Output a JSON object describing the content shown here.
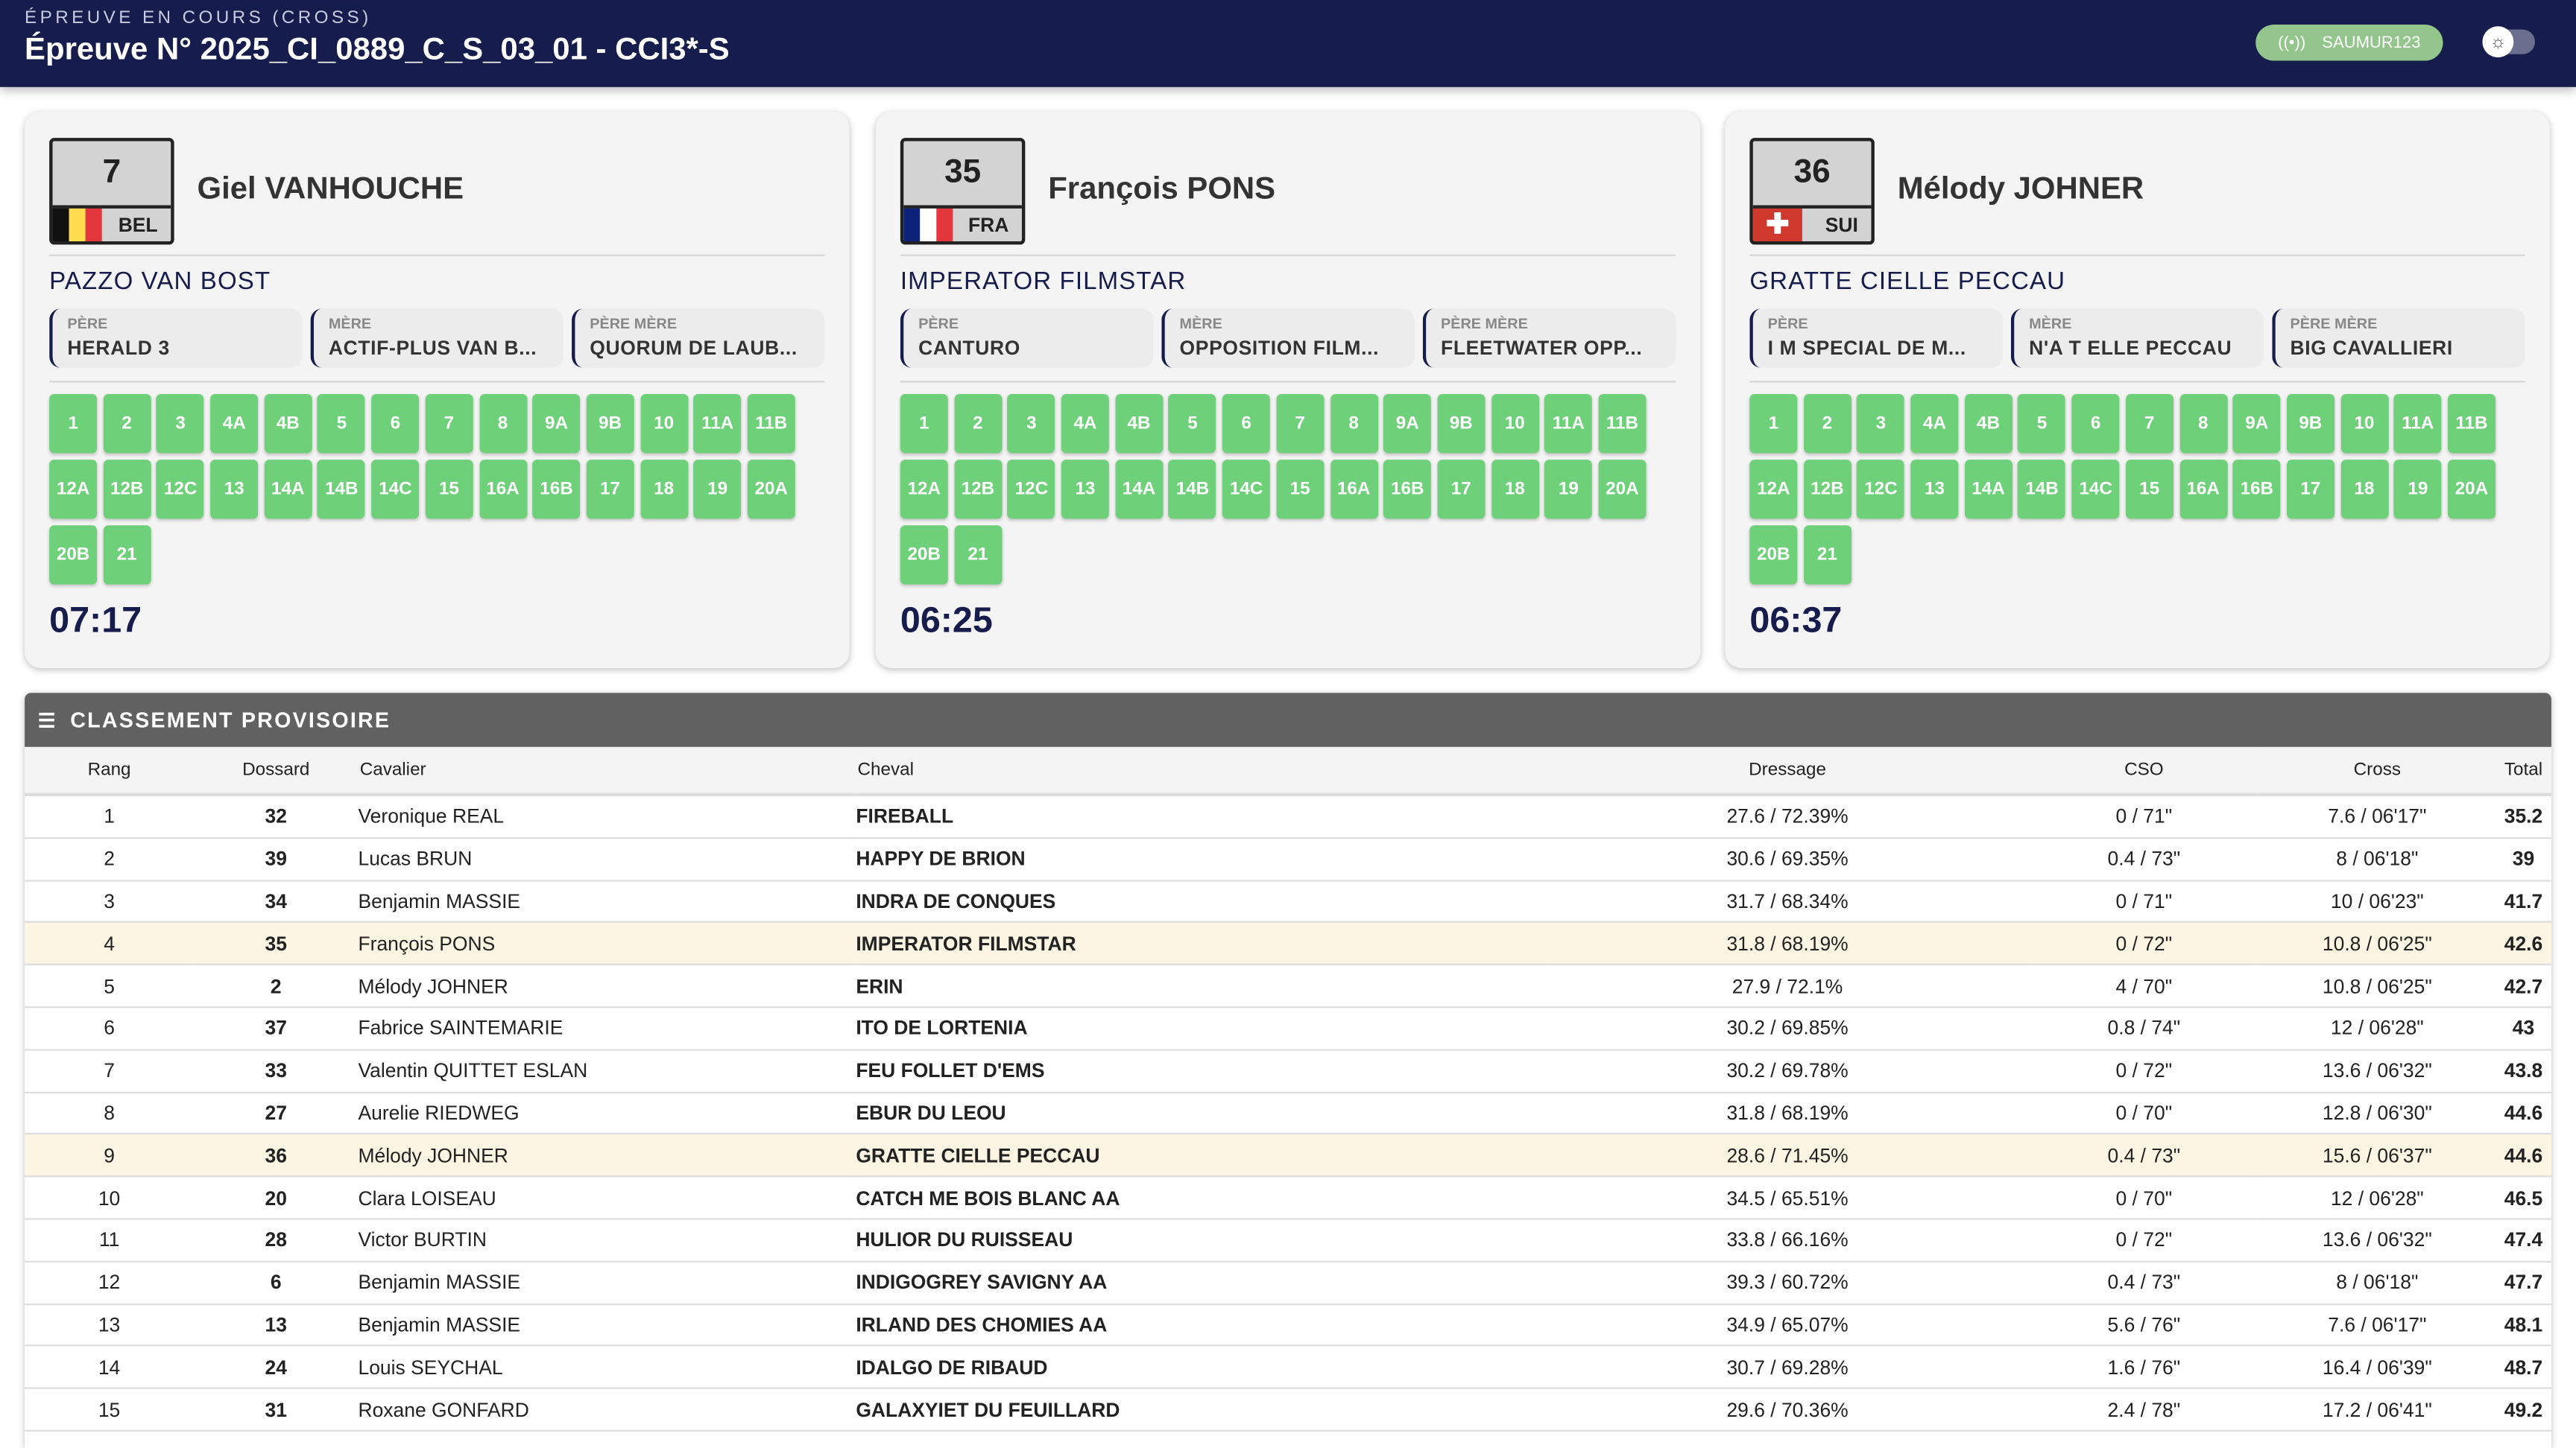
{
  "header": {
    "subtitle": "ÉPREUVE EN COURS (CROSS)",
    "title": "Épreuve N° 2025_CI_0889_C_S_03_01 - CCI3*-S",
    "connection_label": "SAUMUR123",
    "connection_icon": "broadcast-icon",
    "theme_icon": "sun-icon"
  },
  "colors": {
    "navy": "#161d4d",
    "obstacle_ok": "#6fd07a",
    "connection": "#93c58c",
    "highlight_row": "#fdf5e3"
  },
  "cards": [
    {
      "bib": "7",
      "country": "BEL",
      "flag": [
        "#111111",
        "#fddc4e",
        "#e3363d"
      ],
      "rider": "Giel VANHOUCHE",
      "horse": "PAZZO VAN BOST",
      "pedigree": [
        {
          "label": "PÈRE",
          "value": "HERALD 3"
        },
        {
          "label": "MÈRE",
          "value": "ACTIF-PLUS VAN B..."
        },
        {
          "label": "PÈRE MÈRE",
          "value": "QUORUM DE LAUB..."
        }
      ],
      "time": "07:17"
    },
    {
      "bib": "35",
      "country": "FRA",
      "flag": [
        "#0c2179",
        "#ffffff",
        "#e3363d"
      ],
      "rider": "François PONS",
      "horse": "IMPERATOR FILMSTAR",
      "pedigree": [
        {
          "label": "PÈRE",
          "value": "CANTURO"
        },
        {
          "label": "MÈRE",
          "value": "OPPOSITION FILM..."
        },
        {
          "label": "PÈRE MÈRE",
          "value": "FLEETWATER OPP..."
        }
      ],
      "time": "06:25"
    },
    {
      "bib": "36",
      "country": "SUI",
      "flag": [
        "swiss"
      ],
      "rider": "Mélody JOHNER",
      "horse": "GRATTE CIELLE PECCAU",
      "pedigree": [
        {
          "label": "PÈRE",
          "value": "I M SPECIAL DE M..."
        },
        {
          "label": "MÈRE",
          "value": "N'A T ELLE PECCAU"
        },
        {
          "label": "PÈRE MÈRE",
          "value": "BIG CAVALLIERI"
        }
      ],
      "time": "06:37"
    }
  ],
  "obstacles": [
    "1",
    "2",
    "3",
    "4A",
    "4B",
    "5",
    "6",
    "7",
    "8",
    "9A",
    "9B",
    "10",
    "11A",
    "11B",
    "12A",
    "12B",
    "12C",
    "13",
    "14A",
    "14B",
    "14C",
    "15",
    "16A",
    "16B",
    "17",
    "18",
    "19",
    "20A",
    "20B",
    "21"
  ],
  "ranking": {
    "title": "CLASSEMENT PROVISOIRE",
    "columns": [
      "Rang",
      "Dossard",
      "Cavalier",
      "Cheval",
      "Dressage",
      "CSO",
      "Cross",
      "Total"
    ],
    "rows": [
      [
        "1",
        "32",
        "Veronique REAL",
        "FIREBALL",
        "27.6 / 72.39%",
        "0 / 71\"",
        "7.6 / 06'17\"",
        "35.2"
      ],
      [
        "2",
        "39",
        "Lucas BRUN",
        "HAPPY DE BRION",
        "30.6 / 69.35%",
        "0.4 / 73\"",
        "8 / 06'18\"",
        "39"
      ],
      [
        "3",
        "34",
        "Benjamin MASSIE",
        "INDRA DE CONQUES",
        "31.7 / 68.34%",
        "0 / 71\"",
        "10 / 06'23\"",
        "41.7"
      ],
      [
        "4",
        "35",
        "François PONS",
        "IMPERATOR FILMSTAR",
        "31.8 / 68.19%",
        "0 / 72\"",
        "10.8 / 06'25\"",
        "42.6"
      ],
      [
        "5",
        "2",
        "Mélody JOHNER",
        "ERIN",
        "27.9 / 72.1%",
        "4 / 70\"",
        "10.8 / 06'25\"",
        "42.7"
      ],
      [
        "6",
        "37",
        "Fabrice SAINTEMARIE",
        "ITO DE LORTENIA",
        "30.2 / 69.85%",
        "0.8 / 74\"",
        "12 / 06'28\"",
        "43"
      ],
      [
        "7",
        "33",
        "Valentin QUITTET ESLAN",
        "FEU FOLLET D'EMS",
        "30.2 / 69.78%",
        "0 / 72\"",
        "13.6 / 06'32\"",
        "43.8"
      ],
      [
        "8",
        "27",
        "Aurelie RIEDWEG",
        "EBUR DU LEOU",
        "31.8 / 68.19%",
        "0 / 70\"",
        "12.8 / 06'30\"",
        "44.6"
      ],
      [
        "9",
        "36",
        "Mélody JOHNER",
        "GRATTE CIELLE PECCAU",
        "28.6 / 71.45%",
        "0.4 / 73\"",
        "15.6 / 06'37\"",
        "44.6"
      ],
      [
        "10",
        "20",
        "Clara LOISEAU",
        "CATCH ME BOIS BLANC AA",
        "34.5 / 65.51%",
        "0 / 70\"",
        "12 / 06'28\"",
        "46.5"
      ],
      [
        "11",
        "28",
        "Victor BURTIN",
        "HULIOR DU RUISSEAU",
        "33.8 / 66.16%",
        "0 / 72\"",
        "13.6 / 06'32\"",
        "47.4"
      ],
      [
        "12",
        "6",
        "Benjamin MASSIE",
        "INDIGOGREY SAVIGNY AA",
        "39.3 / 60.72%",
        "0.4 / 73\"",
        "8 / 06'18\"",
        "47.7"
      ],
      [
        "13",
        "13",
        "Benjamin MASSIE",
        "IRLAND DES CHOMIES AA",
        "34.9 / 65.07%",
        "5.6 / 76\"",
        "7.6 / 06'17\"",
        "48.1"
      ],
      [
        "14",
        "24",
        "Louis SEYCHAL",
        "IDALGO DE RIBAUD",
        "30.7 / 69.28%",
        "1.6 / 76\"",
        "16.4 / 06'39\"",
        "48.7"
      ],
      [
        "15",
        "31",
        "Roxane GONFARD",
        "GALAXYIET DU FEUILLARD",
        "29.6 / 70.36%",
        "2.4 / 78\"",
        "17.2 / 06'41\"",
        "49.2"
      ]
    ],
    "highlighted_ranks": [
      "4",
      "9"
    ]
  }
}
